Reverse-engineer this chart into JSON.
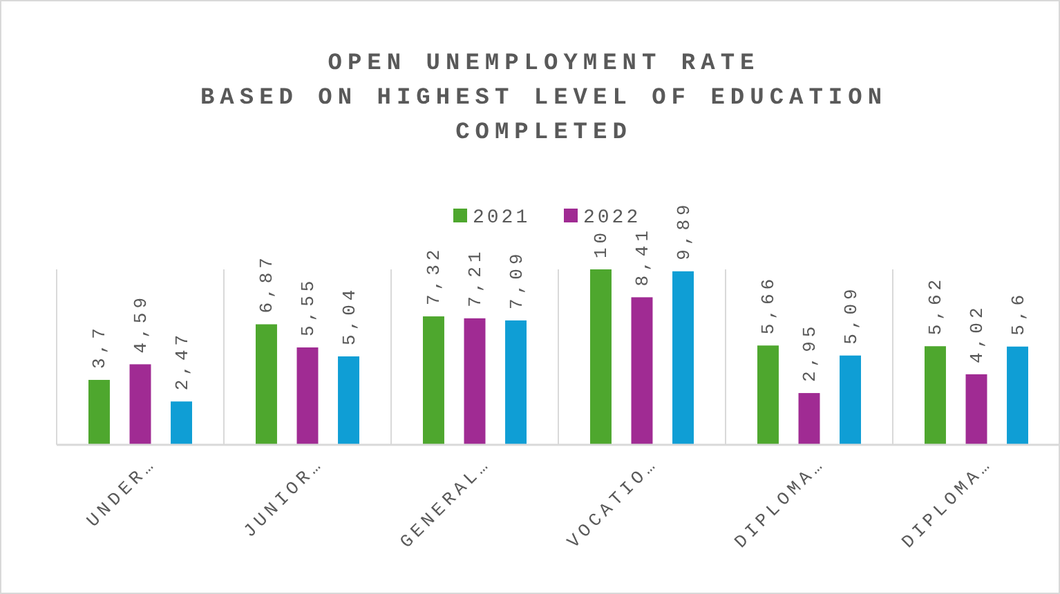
{
  "chart_data": {
    "type": "bar",
    "title": "OPEN UNEMPLOYMENT RATE\nBASED ON HIGHEST LEVEL OF EDUCATION\nCOMPLETED",
    "categories": [
      "UNDER…",
      "JUNIOR…",
      "GENERAL…",
      "VOCATIO…",
      "DIPLOMA…",
      "DIPLOMA…"
    ],
    "series": [
      {
        "name": "2021",
        "color": "#4ea72e",
        "values": [
          3.7,
          6.87,
          7.32,
          10,
          5.66,
          5.62
        ],
        "value_labels": [
          "3,7",
          "6,87",
          "7,32",
          "10",
          "5,66",
          "5,62"
        ]
      },
      {
        "name": "2022",
        "color": "#a02b93",
        "values": [
          4.59,
          5.55,
          7.21,
          8.41,
          2.95,
          4.02
        ],
        "value_labels": [
          "4,59",
          "5,55",
          "7,21",
          "8,41",
          "2,95",
          "4,02"
        ]
      },
      {
        "color": "#0f9ed5",
        "values": [
          2.47,
          5.04,
          7.09,
          9.89,
          5.09,
          5.6
        ],
        "value_labels": [
          "2,47",
          "5,04",
          "7,09",
          "9,89",
          "5,09",
          "5,6"
        ]
      }
    ],
    "legend": "top",
    "tick_labels": "x"
  }
}
